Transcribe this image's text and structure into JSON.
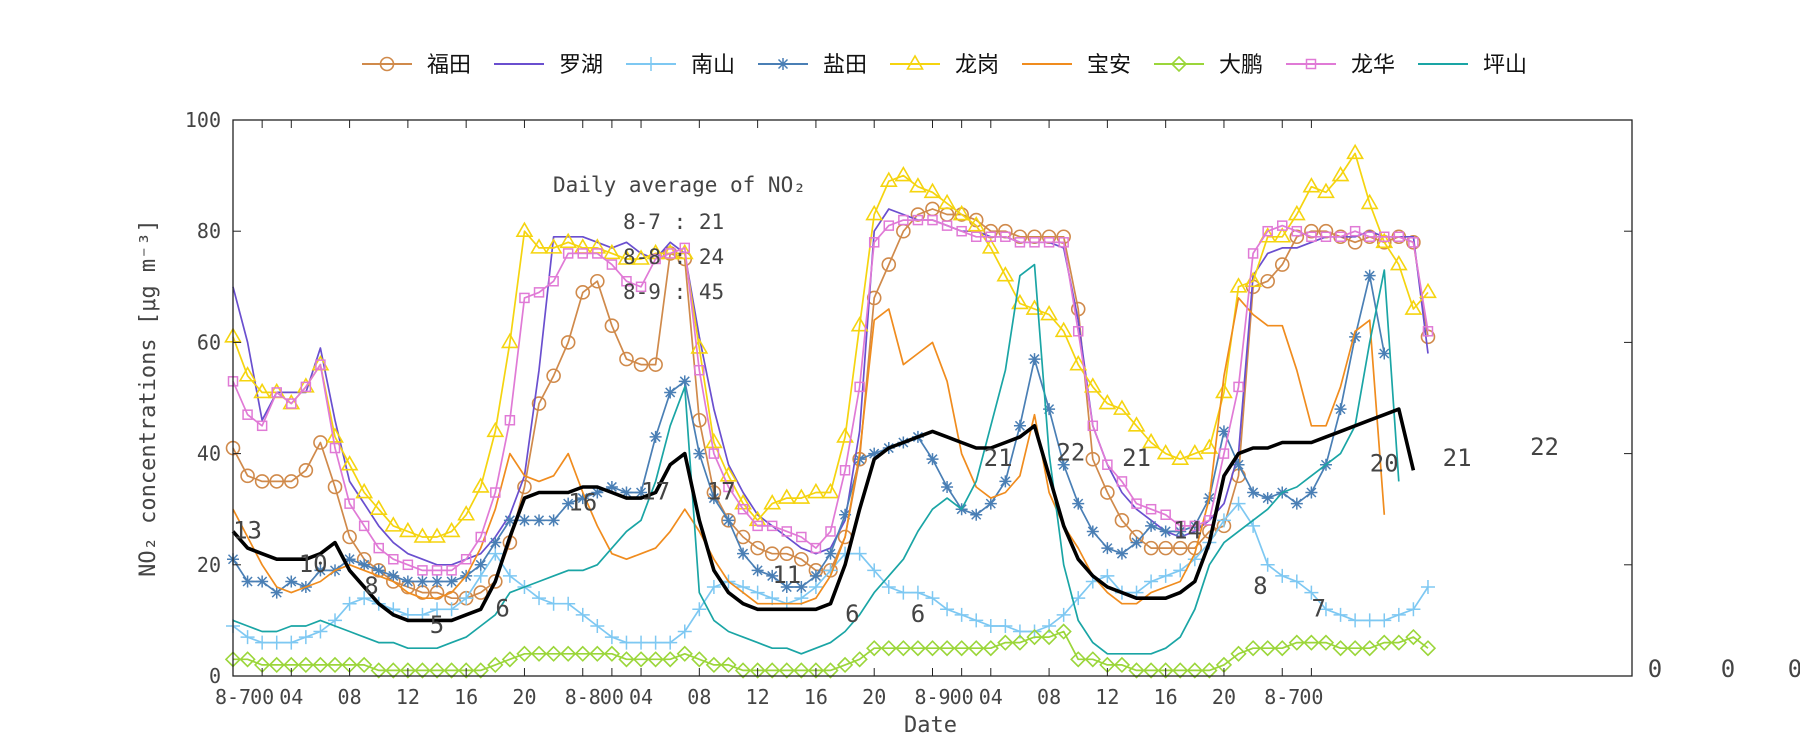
{
  "chart_data": {
    "type": "line",
    "title": "",
    "xlabel": "Date",
    "ylabel": "NO₂ concentrations [μg m⁻³]",
    "ylim": [
      0,
      100
    ],
    "xlim": [
      0,
      96
    ],
    "yticks": [
      0,
      20,
      40,
      60,
      80,
      100
    ],
    "xticks": [
      {
        "x": 0,
        "label": "8-7"
      },
      {
        "x": 2,
        "label": "00"
      },
      {
        "x": 4,
        "label": "04"
      },
      {
        "x": 8,
        "label": "08"
      },
      {
        "x": 12,
        "label": "12"
      },
      {
        "x": 16,
        "label": "16"
      },
      {
        "x": 20,
        "label": "20"
      },
      {
        "x": 24,
        "label": "8-8"
      },
      {
        "x": 26,
        "label": "00"
      },
      {
        "x": 28,
        "label": "04"
      },
      {
        "x": 32,
        "label": "08"
      },
      {
        "x": 36,
        "label": "12"
      },
      {
        "x": 40,
        "label": "16"
      },
      {
        "x": 44,
        "label": "20"
      },
      {
        "x": 48,
        "label": "8-9"
      },
      {
        "x": 50,
        "label": "00"
      },
      {
        "x": 52,
        "label": "04"
      },
      {
        "x": 56,
        "label": "08"
      },
      {
        "x": 60,
        "label": "12"
      },
      {
        "x": 64,
        "label": "16"
      },
      {
        "x": 68,
        "label": "20"
      },
      {
        "x": 72,
        "label": "8-7"
      },
      {
        "x": 74,
        "label": "00"
      }
    ],
    "grid": false,
    "legend_position": "top",
    "annotation": {
      "title": "Daily average of NO₂",
      "lines": [
        "8-7 : 21",
        "8-8 : 24",
        "8-9 : 45"
      ]
    },
    "stray_labels": [
      "0",
      "0",
      "0"
    ],
    "series": [
      {
        "name": "福田",
        "color": "#d08a4b",
        "marker": "circle",
        "values": [
          41,
          36,
          35,
          35,
          35,
          37,
          42,
          34,
          25,
          21,
          19,
          17,
          16,
          15,
          15,
          14,
          14,
          15,
          17,
          24,
          34,
          49,
          54,
          60,
          69,
          71,
          63,
          57,
          56,
          56,
          76,
          75,
          46,
          33,
          28,
          25,
          23,
          22,
          22,
          21,
          19,
          19,
          25,
          39,
          68,
          74,
          80,
          83,
          84,
          83,
          83,
          82,
          80,
          80,
          79,
          79,
          79,
          79,
          66,
          39,
          33,
          28,
          25,
          23,
          23,
          23,
          23,
          26,
          27,
          36,
          70,
          71,
          74,
          79,
          80,
          80,
          79,
          78,
          79,
          78,
          79,
          78,
          61
        ]
      },
      {
        "name": "罗湖",
        "color": "#6a4fcf",
        "marker": "none",
        "values": [
          70,
          60,
          46,
          51,
          51,
          51,
          59,
          46,
          35,
          31,
          27,
          24,
          22,
          21,
          20,
          20,
          21,
          22,
          25,
          29,
          36,
          55,
          79,
          79,
          79,
          78,
          77,
          78,
          76,
          75,
          78,
          76,
          61,
          48,
          38,
          33,
          29,
          27,
          25,
          23,
          22,
          23,
          28,
          44,
          80,
          84,
          83,
          82,
          82,
          81,
          80,
          80,
          79,
          79,
          78,
          78,
          78,
          77,
          64,
          45,
          38,
          33,
          30,
          28,
          26,
          25,
          26,
          28,
          31,
          40,
          72,
          76,
          77,
          77,
          78,
          79,
          79,
          79,
          80,
          79,
          79,
          79,
          58
        ]
      },
      {
        "name": "南山",
        "color": "#7ec8f2",
        "marker": "plus",
        "values": [
          9,
          7,
          6,
          6,
          6,
          7,
          8,
          10,
          13,
          14,
          13,
          12,
          11,
          11,
          12,
          12,
          14,
          18,
          22,
          18,
          16,
          14,
          13,
          13,
          11,
          9,
          7,
          6,
          6,
          6,
          6,
          8,
          12,
          16,
          17,
          16,
          15,
          14,
          13,
          14,
          16,
          19,
          22,
          22,
          19,
          16,
          15,
          15,
          14,
          12,
          11,
          10,
          9,
          9,
          8,
          8,
          9,
          11,
          14,
          17,
          18,
          15,
          15,
          17,
          18,
          19,
          21,
          24,
          28,
          31,
          27,
          20,
          18,
          17,
          15,
          12,
          11,
          10,
          10,
          10,
          11,
          12,
          16
        ]
      },
      {
        "name": "盐田",
        "color": "#4a7fb5",
        "marker": "star",
        "values": [
          21,
          17,
          17,
          15,
          17,
          16,
          19,
          19,
          21,
          20,
          19,
          18,
          17,
          17,
          17,
          17,
          18,
          20,
          24,
          28,
          28,
          28,
          28,
          31,
          32,
          33,
          34,
          33,
          33,
          43,
          51,
          53,
          40,
          32,
          28,
          22,
          19,
          18,
          16,
          16,
          18,
          22,
          29,
          39,
          40,
          41,
          42,
          43,
          39,
          34,
          30,
          29,
          31,
          35,
          45,
          57,
          48,
          38,
          31,
          26,
          23,
          22,
          24,
          27,
          26,
          26,
          27,
          32,
          44,
          38,
          33,
          32,
          33,
          31,
          33,
          38,
          48,
          61,
          72,
          58
        ]
      },
      {
        "name": "龙岗",
        "color": "#f5d40f",
        "marker": "triangle",
        "values": [
          61,
          54,
          51,
          51,
          49,
          52,
          56,
          43,
          38,
          33,
          30,
          27,
          26,
          25,
          25,
          26,
          29,
          34,
          44,
          60,
          80,
          77,
          77,
          78,
          77,
          77,
          76,
          75,
          75,
          76,
          76,
          76,
          59,
          42,
          36,
          31,
          28,
          31,
          32,
          32,
          33,
          33,
          43,
          63,
          83,
          89,
          90,
          88,
          87,
          85,
          83,
          81,
          77,
          72,
          67,
          66,
          65,
          62,
          56,
          52,
          49,
          48,
          45,
          42,
          40,
          39,
          40,
          41,
          51,
          70,
          71,
          79,
          79,
          83,
          88,
          87,
          90,
          94,
          85,
          78,
          74,
          66,
          69
        ]
      },
      {
        "name": "宝安",
        "color": "#f08c1e",
        "marker": "none",
        "values": [
          30,
          25,
          20,
          16,
          15,
          16,
          17,
          19,
          20,
          19,
          18,
          17,
          15,
          14,
          14,
          15,
          18,
          23,
          30,
          40,
          36,
          35,
          36,
          40,
          33,
          27,
          22,
          21,
          22,
          23,
          26,
          30,
          26,
          21,
          17,
          15,
          13,
          13,
          13,
          13,
          14,
          18,
          25,
          40,
          64,
          66,
          56,
          58,
          60,
          53,
          40,
          34,
          32,
          33,
          36,
          47,
          33,
          27,
          23,
          18,
          15,
          13,
          13,
          15,
          16,
          17,
          22,
          32,
          54,
          68,
          65,
          63,
          63,
          55,
          45,
          45,
          52,
          62,
          64,
          29
        ]
      },
      {
        "name": "大鹏",
        "color": "#9bd63a",
        "marker": "diamond",
        "values": [
          3,
          3,
          2,
          2,
          2,
          2,
          2,
          2,
          2,
          2,
          1,
          1,
          1,
          1,
          1,
          1,
          1,
          1,
          2,
          3,
          4,
          4,
          4,
          4,
          4,
          4,
          4,
          3,
          3,
          3,
          3,
          4,
          3,
          2,
          2,
          1,
          1,
          1,
          1,
          1,
          1,
          1,
          2,
          3,
          5,
          5,
          5,
          5,
          5,
          5,
          5,
          5,
          5,
          6,
          6,
          7,
          7,
          8,
          3,
          3,
          2,
          2,
          1,
          1,
          1,
          1,
          1,
          1,
          2,
          4,
          5,
          5,
          5,
          6,
          6,
          6,
          5,
          5,
          5,
          6,
          6,
          7,
          5
        ]
      },
      {
        "name": "龙华",
        "color": "#e07ad6",
        "marker": "square",
        "values": [
          53,
          47,
          45,
          51,
          49,
          52,
          56,
          41,
          31,
          27,
          23,
          21,
          20,
          19,
          19,
          19,
          21,
          25,
          33,
          46,
          68,
          69,
          71,
          76,
          76,
          76,
          74,
          71,
          70,
          75,
          76,
          77,
          55,
          40,
          34,
          30,
          27,
          27,
          26,
          25,
          23,
          26,
          37,
          52,
          78,
          81,
          82,
          82,
          82,
          81,
          80,
          79,
          79,
          79,
          78,
          78,
          78,
          78,
          62,
          45,
          38,
          35,
          31,
          30,
          29,
          27,
          27,
          28,
          40,
          52,
          76,
          80,
          81,
          80,
          79,
          79,
          79,
          80,
          79,
          79,
          79,
          78,
          62
        ]
      },
      {
        "name": "坪山",
        "color": "#1aa5a5",
        "marker": "none",
        "values": [
          10,
          9,
          8,
          8,
          9,
          9,
          10,
          9,
          8,
          7,
          6,
          6,
          5,
          5,
          5,
          6,
          7,
          9,
          11,
          15,
          16,
          17,
          18,
          19,
          19,
          20,
          23,
          26,
          28,
          35,
          45,
          52,
          15,
          10,
          8,
          7,
          6,
          5,
          5,
          4,
          5,
          6,
          8,
          11,
          15,
          18,
          21,
          26,
          30,
          32,
          30,
          35,
          45,
          55,
          72,
          74,
          40,
          20,
          10,
          6,
          4,
          4,
          4,
          4,
          5,
          7,
          12,
          20,
          24,
          26,
          28,
          30,
          33,
          34,
          36,
          38,
          40,
          45,
          60,
          73,
          35
        ]
      },
      {
        "name": "",
        "color": "#000000",
        "marker": "none",
        "thick": true,
        "values": [
          26,
          23,
          22,
          21,
          21,
          21,
          22,
          24,
          19,
          16,
          13,
          11,
          10,
          10,
          10,
          10,
          11,
          12,
          17,
          25,
          32,
          33,
          33,
          33,
          34,
          34,
          33,
          32,
          32,
          33,
          38,
          40,
          28,
          19,
          15,
          13,
          12,
          12,
          12,
          12,
          12,
          13,
          20,
          30,
          39,
          41,
          42,
          43,
          44,
          43,
          42,
          41,
          41,
          42,
          43,
          45,
          36,
          27,
          21,
          18,
          16,
          15,
          14,
          14,
          14,
          15,
          17,
          24,
          36,
          40,
          41,
          41,
          42,
          42,
          42,
          43,
          44,
          45,
          46,
          47,
          48,
          37
        ]
      }
    ],
    "day_average_labels": [
      {
        "x": 1,
        "y": 26,
        "text": "13"
      },
      {
        "x": 5.5,
        "y": 20,
        "text": "10"
      },
      {
        "x": 9.5,
        "y": 16,
        "text": "8"
      },
      {
        "x": 14,
        "y": 9,
        "text": "5"
      },
      {
        "x": 18.5,
        "y": 12,
        "text": "6"
      },
      {
        "x": 24,
        "y": 31,
        "text": "16"
      },
      {
        "x": 29,
        "y": 33,
        "text": "17"
      },
      {
        "x": 33.5,
        "y": 33,
        "text": "17"
      },
      {
        "x": 38,
        "y": 18,
        "text": "11"
      },
      {
        "x": 42.5,
        "y": 11,
        "text": "6"
      },
      {
        "x": 47,
        "y": 11,
        "text": "6"
      },
      {
        "x": 52.5,
        "y": 39,
        "text": "21"
      },
      {
        "x": 57.5,
        "y": 40,
        "text": "22"
      },
      {
        "x": 62,
        "y": 39,
        "text": "21"
      },
      {
        "x": 65.5,
        "y": 26,
        "text": "14"
      },
      {
        "x": 70.5,
        "y": 16,
        "text": "8"
      },
      {
        "x": 74.5,
        "y": 12,
        "text": "7"
      },
      {
        "x": 79,
        "y": 38,
        "text": "20"
      },
      {
        "x": 84,
        "y": 39,
        "text": "21"
      },
      {
        "x": 90,
        "y": 41,
        "text": "22"
      }
    ]
  }
}
